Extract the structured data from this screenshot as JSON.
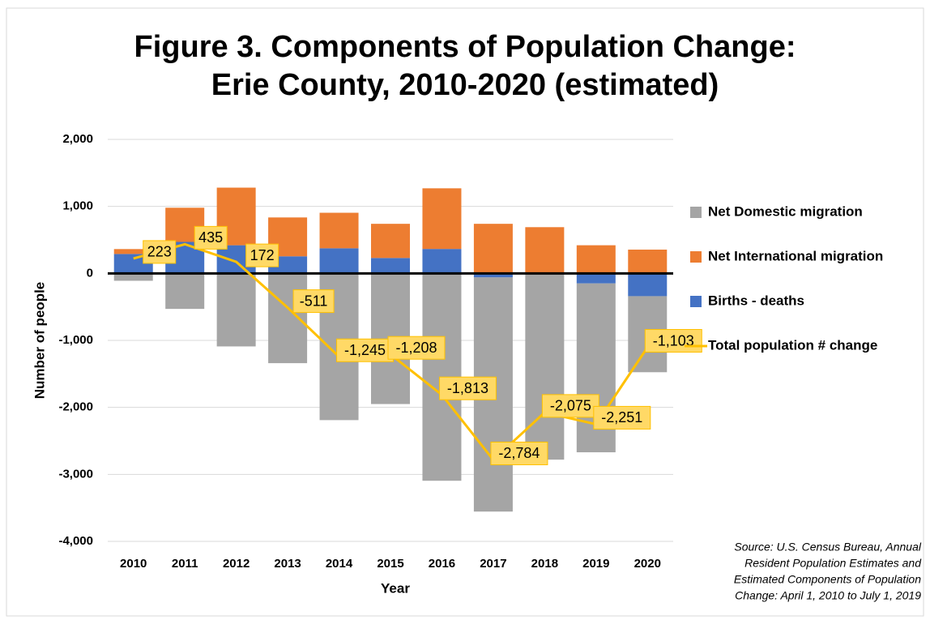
{
  "chart_data": {
    "type": "bar",
    "title": [
      "Figure 3. Components of Population Change:",
      "Erie County, 2010-2020 (estimated)"
    ],
    "x_label": "Year",
    "y_label": "Number of people",
    "source": [
      "Source: U.S. Census Bureau, Annual",
      "Resident Population Estimates and",
      "Estimated Components of Population",
      "Change: April 1, 2010 to July 1, 2019"
    ],
    "categories": [
      "2010",
      "2011",
      "2012",
      "2013",
      "2014",
      "2015",
      "2016",
      "2017",
      "2018",
      "2019",
      "2020"
    ],
    "stacked": true,
    "legend": "right",
    "grid": true,
    "ylim": [
      -4000,
      2000
    ],
    "yticks": [
      {
        "value": -4000,
        "label": "-4,000"
      },
      {
        "value": -3000,
        "label": "-3,000"
      },
      {
        "value": -2000,
        "label": "-2,000"
      },
      {
        "value": -1000,
        "label": "-1,000"
      },
      0,
      {
        "value": 1000,
        "label": "1,000"
      },
      {
        "value": 2000,
        "label": "2,000"
      }
    ],
    "series": [
      {
        "name": "Births - deaths",
        "type": "bar",
        "color": "#4472c4",
        "values": [
          290,
          470,
          420,
          255,
          375,
          230,
          365,
          -60,
          10,
          -150,
          -340
        ]
      },
      {
        "name": "Net International migration",
        "type": "bar",
        "color": "#ed7d31",
        "values": [
          73,
          510,
          860,
          580,
          530,
          510,
          905,
          740,
          680,
          420,
          355
        ]
      },
      {
        "name": "Net Domestic migration",
        "type": "bar",
        "color": "#a5a5a5",
        "values": [
          -110,
          -530,
          -1090,
          -1340,
          -2190,
          -1950,
          -3095,
          -3495,
          -2780,
          -2520,
          -1135
        ]
      },
      {
        "name": "Total population # change",
        "type": "line",
        "color": "#ffc000",
        "values": [
          223,
          435,
          172,
          -511,
          -1245,
          -1208,
          -1813,
          -2784,
          -2075,
          -2251,
          -1103
        ],
        "value_labels": [
          "223",
          "435",
          "172",
          "-511",
          "-1,245",
          "-1,208",
          "-1,813",
          "-2,784",
          "-2,075",
          "-2,251",
          "-1,103"
        ]
      }
    ]
  }
}
